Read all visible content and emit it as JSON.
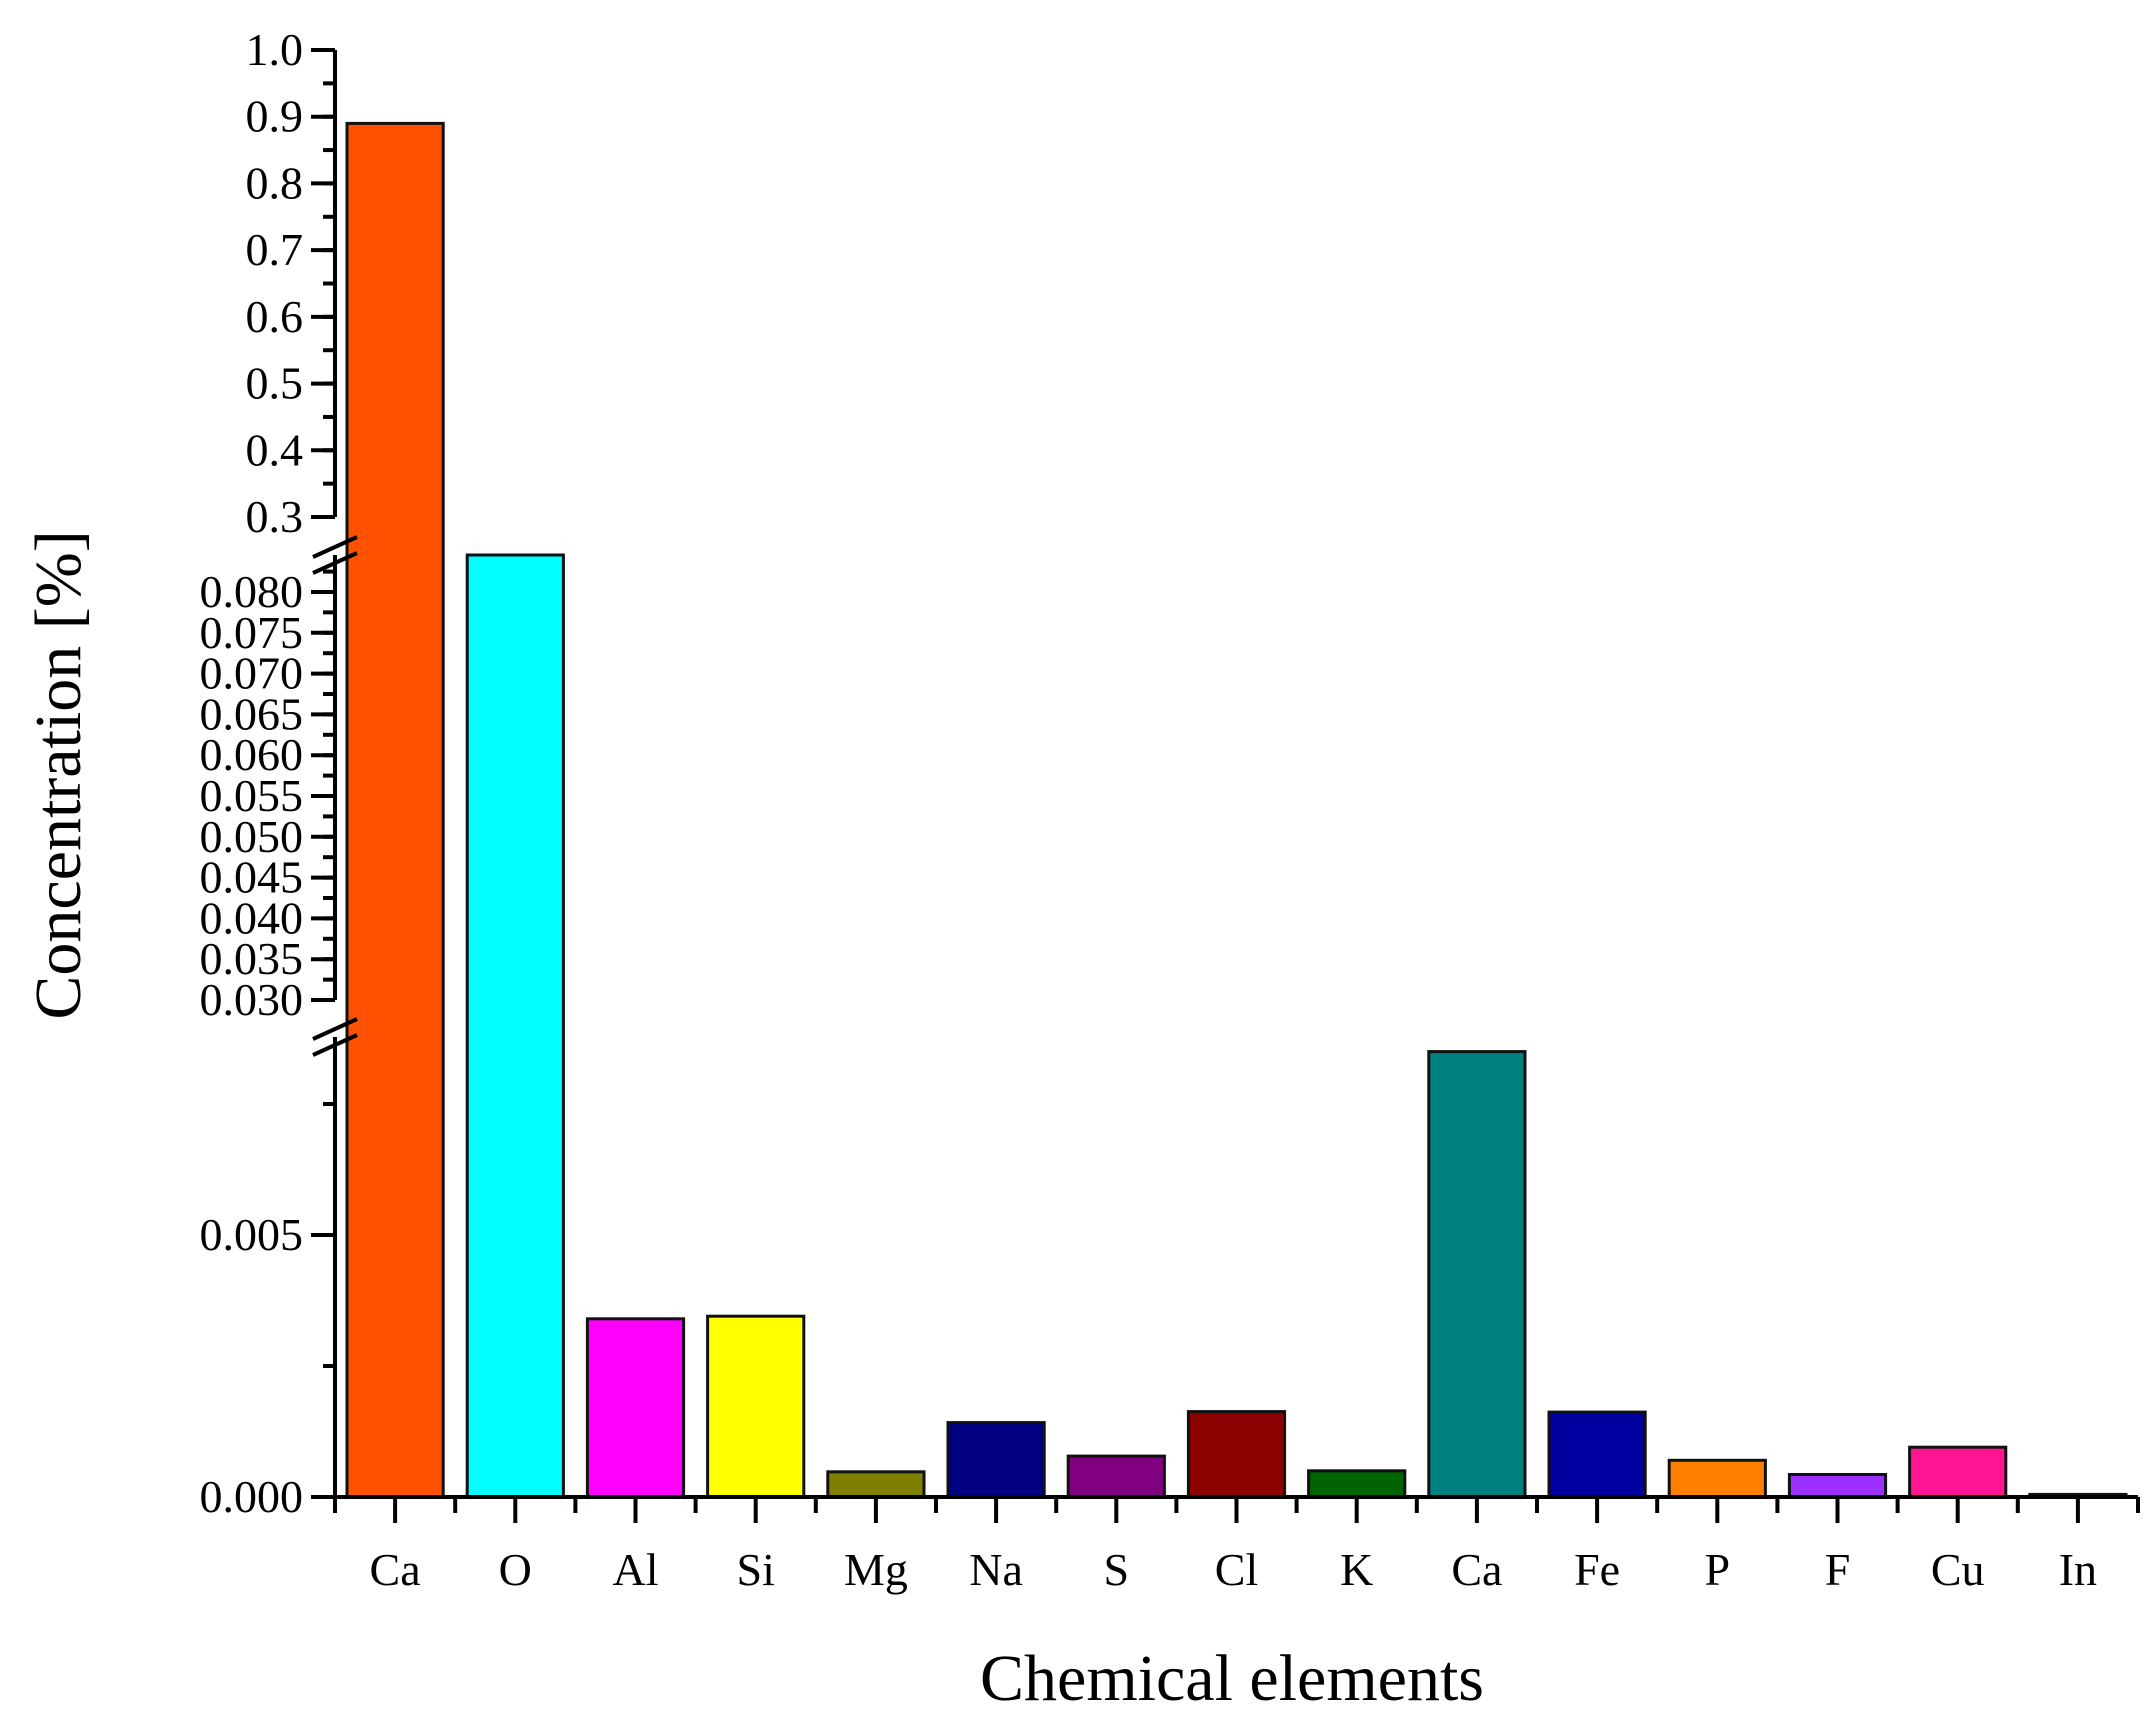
{
  "chart_data": {
    "type": "bar",
    "title": "",
    "xlabel": "Chemical elements",
    "ylabel": "Concentration [%]",
    "categories": [
      "Ca",
      "O",
      "Al",
      "Si",
      "Mg",
      "Na",
      "S",
      "Cl",
      "K",
      "Ca",
      "Fe",
      "P",
      "F",
      "Cu",
      "In"
    ],
    "values": [
      0.89,
      0.0835,
      0.0034,
      0.00345,
      0.00048,
      0.00142,
      0.00078,
      0.00163,
      0.0005,
      0.0085,
      0.00162,
      0.0007,
      0.00043,
      0.00095,
      5e-05
    ],
    "colors": [
      "#ff5100",
      "#00ffff",
      "#ff00ff",
      "#ffff00",
      "#808000",
      "#000080",
      "#800080",
      "#8b0000",
      "#006400",
      "#008080",
      "#0000a0",
      "#ff7f00",
      "#9b30ff",
      "#ff1493",
      "#222222"
    ],
    "y_axis_breaks": [
      {
        "range": [
          0.0,
          0.0085
        ],
        "major_ticks": [
          0.0,
          0.005
        ],
        "tick_labels": [
          "0.000",
          "0.005"
        ],
        "minor_step": 0.0025
      },
      {
        "range": [
          0.03,
          0.083
        ],
        "major_ticks": [
          0.03,
          0.035,
          0.04,
          0.045,
          0.05,
          0.055,
          0.06,
          0.065,
          0.07,
          0.075,
          0.08
        ],
        "tick_labels": [
          "0.030",
          "0.035",
          "0.040",
          "0.045",
          "0.050",
          "0.055",
          "0.060",
          "0.065",
          "0.070",
          "0.075",
          "0.080"
        ],
        "minor_step": 0.0025
      },
      {
        "range": [
          0.3,
          1.0
        ],
        "major_ticks": [
          0.3,
          0.4,
          0.5,
          0.6,
          0.7,
          0.8,
          0.9,
          1.0
        ],
        "tick_labels": [
          "0.3",
          "0.4",
          "0.5",
          "0.6",
          "0.7",
          "0.8",
          "0.9",
          "1.0"
        ],
        "minor_step": 0.05
      }
    ],
    "grid": false,
    "legend": "none"
  }
}
